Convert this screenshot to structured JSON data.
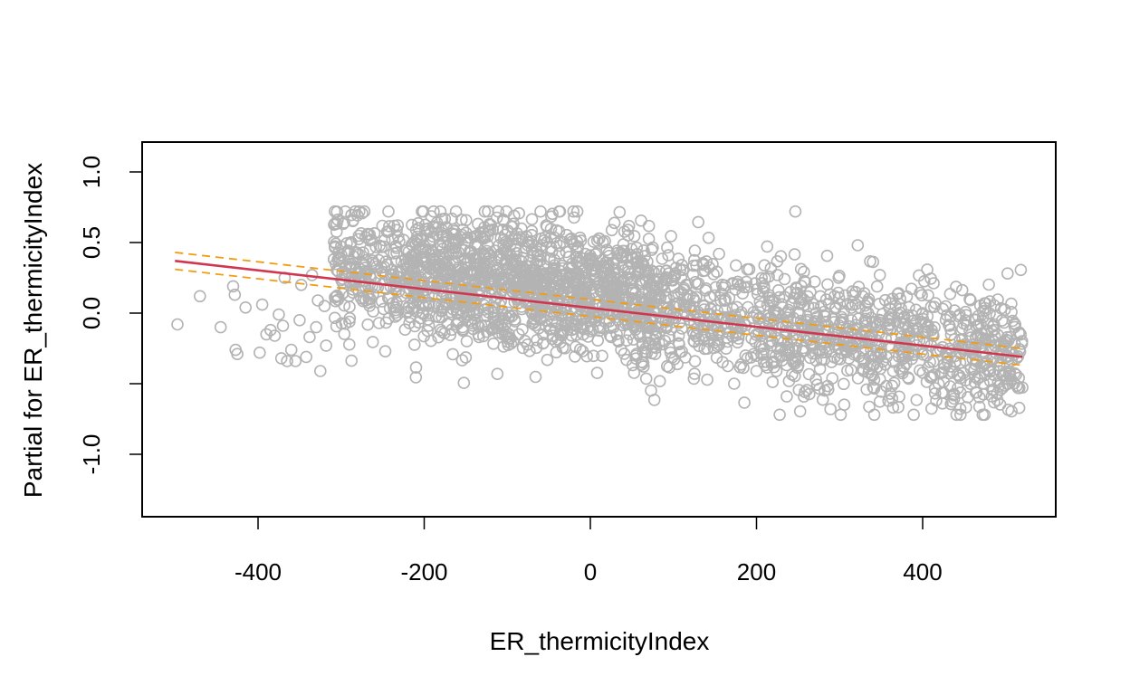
{
  "chart_data": {
    "type": "scatter",
    "title": "",
    "xlabel": "ER_thermicityIndex",
    "ylabel": "Partial for ER_thermicityIndex",
    "xlim": [
      -550,
      550
    ],
    "ylim": [
      -1.45,
      1.2
    ],
    "x_ticks": [
      -400,
      -200,
      0,
      200,
      400
    ],
    "x_tick_labels": [
      "-400",
      "-200",
      "0",
      "200",
      "400"
    ],
    "y_ticks": [
      -1.0,
      -0.5,
      0.0,
      0.5,
      1.0
    ],
    "y_tick_labels": [
      "-1.0",
      "",
      "0.0",
      "0.5",
      "1.0"
    ],
    "grid": false,
    "colors": {
      "points": "#b3b3b3",
      "fit": "#d0364f",
      "band": "#f39c12",
      "frame": "#000000"
    },
    "fit": {
      "x": [
        -500,
        520
      ],
      "y": [
        0.37,
        -0.31
      ]
    },
    "upper_band": {
      "x": [
        -500,
        520
      ],
      "y": [
        0.43,
        -0.25
      ]
    },
    "lower_band": {
      "x": [
        -500,
        520
      ],
      "y": [
        0.31,
        -0.37
      ]
    },
    "cloud": {
      "note": "dense residual cloud, approx. points",
      "x_range": [
        -310,
        520
      ],
      "y_spread": 0.22
    },
    "outliers": [
      {
        "x": -497,
        "y": -0.08
      },
      {
        "x": -470,
        "y": 0.12
      },
      {
        "x": -445,
        "y": -0.1
      },
      {
        "x": -430,
        "y": 0.19
      },
      {
        "x": -428,
        "y": 0.13
      },
      {
        "x": -427,
        "y": -0.26
      },
      {
        "x": -425,
        "y": -0.29
      },
      {
        "x": -415,
        "y": 0.04
      },
      {
        "x": -398,
        "y": -0.28
      },
      {
        "x": -395,
        "y": 0.06
      },
      {
        "x": -390,
        "y": -0.15
      },
      {
        "x": -385,
        "y": -0.12
      },
      {
        "x": -380,
        "y": -0.16
      },
      {
        "x": -375,
        "y": -0.01
      },
      {
        "x": -372,
        "y": -0.32
      },
      {
        "x": -370,
        "y": -0.09
      },
      {
        "x": -368,
        "y": 0.25
      },
      {
        "x": -365,
        "y": -0.34
      },
      {
        "x": -360,
        "y": -0.26
      },
      {
        "x": -355,
        "y": -0.34
      },
      {
        "x": -350,
        "y": -0.05
      },
      {
        "x": -348,
        "y": 0.2
      },
      {
        "x": -342,
        "y": -0.31
      },
      {
        "x": -338,
        "y": -0.17
      },
      {
        "x": -335,
        "y": 0.27
      },
      {
        "x": -330,
        "y": -0.1
      },
      {
        "x": -328,
        "y": 0.09
      },
      {
        "x": -325,
        "y": -0.41
      },
      {
        "x": -320,
        "y": 0.05
      },
      {
        "x": -318,
        "y": -0.23
      }
    ]
  }
}
